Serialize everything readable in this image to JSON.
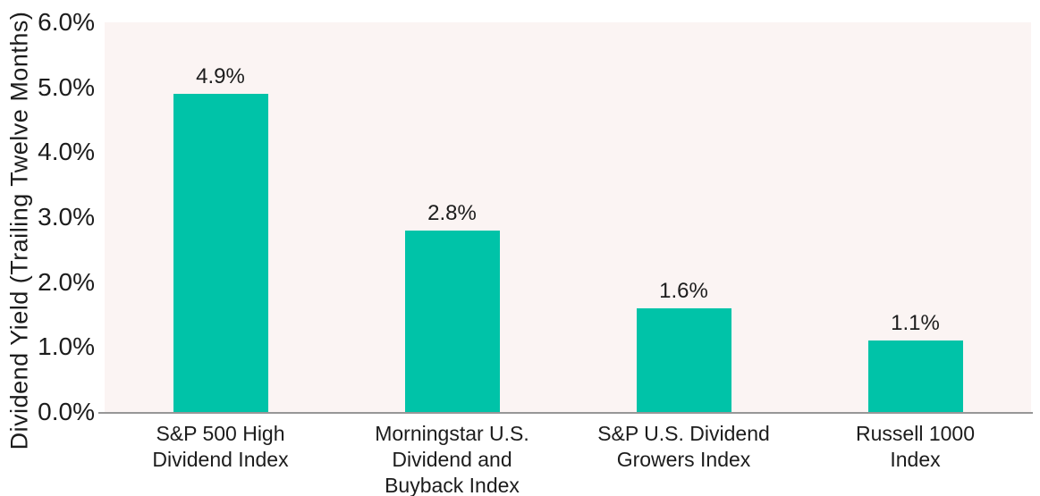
{
  "colors": {
    "bar": "#00C3A8",
    "plot_background": "#FBF4F3",
    "axis_line": "#979797",
    "text": "#1C1C1C",
    "page_background": "#FFFFFF"
  },
  "chart_data": {
    "type": "bar",
    "title": "",
    "xlabel": "",
    "ylabel": "Dividend Yield (Trailing Twelve Months)",
    "ylim": [
      0,
      6
    ],
    "grid": false,
    "legend": false,
    "yticks": [
      "0.0%",
      "1.0%",
      "2.0%",
      "3.0%",
      "4.0%",
      "5.0%",
      "6.0%"
    ],
    "categories": [
      "S&P 500 High Dividend Index",
      "Morningstar U.S. Dividend and Buyback Index",
      "S&P U.S. Dividend Growers Index",
      "Russell 1000 Index"
    ],
    "category_lines": [
      [
        "S&P 500 High",
        "Dividend Index"
      ],
      [
        "Morningstar U.S.",
        "Dividend and",
        "Buyback Index"
      ],
      [
        "S&P U.S. Dividend",
        "Growers Index"
      ],
      [
        "Russell 1000",
        "Index"
      ]
    ],
    "values": [
      4.9,
      2.8,
      1.6,
      1.1
    ],
    "value_labels": [
      "4.9%",
      "2.8%",
      "1.6%",
      "1.1%"
    ]
  }
}
